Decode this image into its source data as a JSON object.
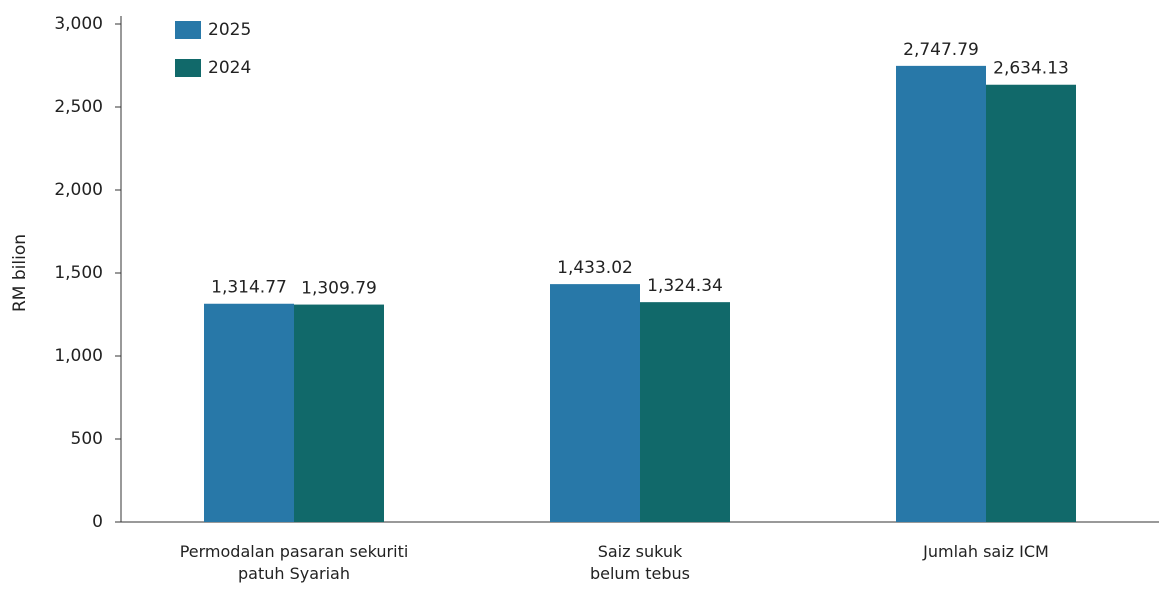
{
  "chart_data": {
    "type": "bar",
    "y_label": "RM bilion",
    "categories": [
      "Permodalan pasaran sekuriti\npatuh Syariah",
      "Saiz sukuk\nbelum tebus",
      "Jumlah saiz ICM"
    ],
    "series": [
      {
        "name": "2025",
        "color": "#2878a8",
        "values": [
          1314.77,
          1433.02,
          2747.79
        ],
        "value_labels": [
          "1,314.77",
          "1,433.02",
          "2,747.79"
        ]
      },
      {
        "name": "2024",
        "color": "#11696a",
        "values": [
          1309.79,
          1324.34,
          2634.13
        ],
        "value_labels": [
          "1,309.79",
          "1,324.34",
          "2,634.13"
        ]
      }
    ],
    "ylim": [
      0,
      3000
    ],
    "yticks": [
      0,
      500,
      {
        "value": 1000,
        "label": "1,000"
      },
      {
        "value": 1500,
        "label": "1,500"
      },
      {
        "value": 2000,
        "label": "2,000"
      },
      {
        "value": 2500,
        "label": "2,500"
      },
      {
        "value": 3000,
        "label": "3,000"
      }
    ],
    "legend": "upper left"
  }
}
